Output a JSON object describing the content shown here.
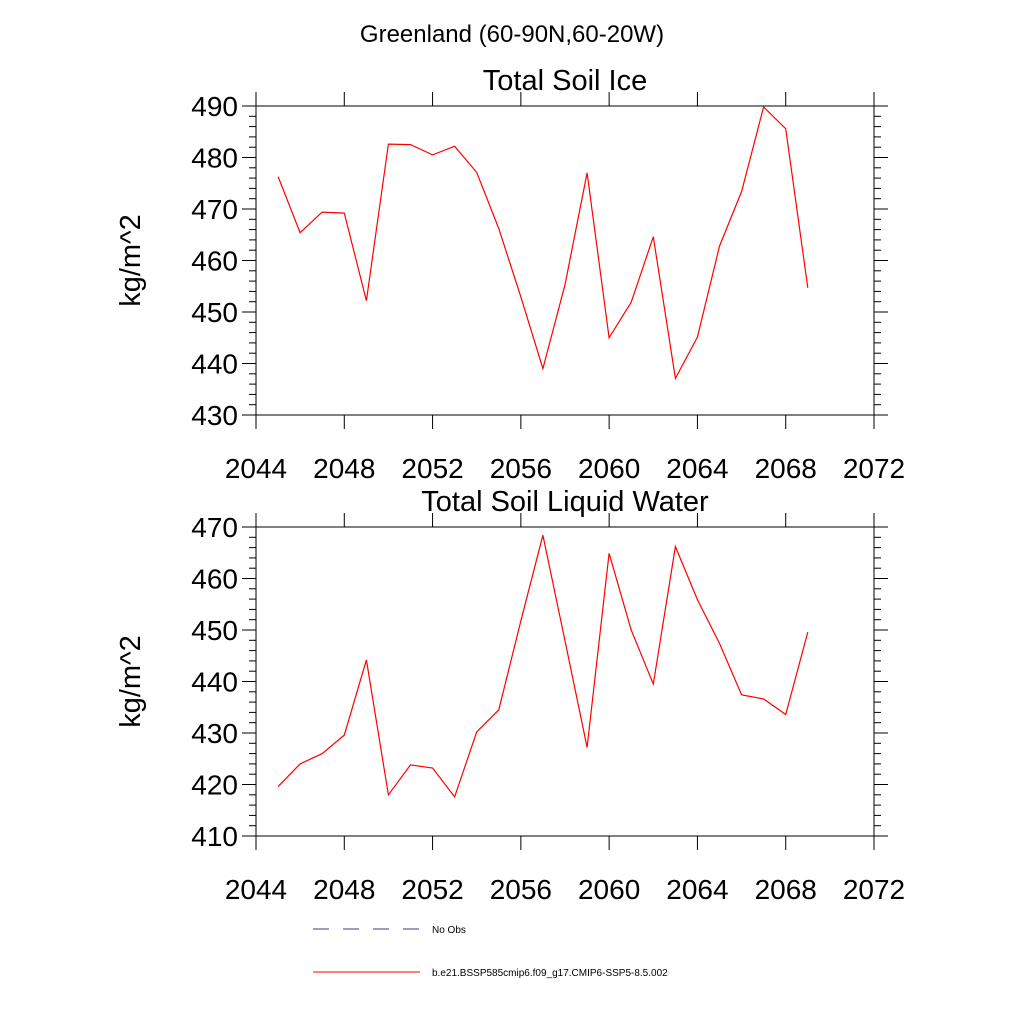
{
  "figure": {
    "title": "Greenland (60-90N,60-20W)"
  },
  "chart_data": [
    {
      "type": "line",
      "title": "Total Soil Ice",
      "xlabel": "",
      "ylabel": "kg/m^2",
      "xlim": [
        2044,
        2072
      ],
      "ylim": [
        430,
        490
      ],
      "xticks": [
        2044,
        2048,
        2052,
        2056,
        2060,
        2064,
        2068,
        2072
      ],
      "yticks": [
        430,
        440,
        450,
        460,
        470,
        480,
        490
      ],
      "x": [
        2045,
        2046,
        2047,
        2048,
        2049,
        2050,
        2051,
        2052,
        2053,
        2054,
        2055,
        2056,
        2057,
        2058,
        2059,
        2060,
        2061,
        2062,
        2063,
        2064,
        2065,
        2066,
        2067,
        2068,
        2069
      ],
      "series": [
        {
          "name": "b.e21.BSSP585cmip6.f09_g17.CMIP6-SSP5-8.5.002",
          "color": "#ff0000",
          "values": [
            476.3,
            465.4,
            469.4,
            469.2,
            452.2,
            482.6,
            482.5,
            480.5,
            482.2,
            477.1,
            466.2,
            452.9,
            439.0,
            455.3,
            477.0,
            445.0,
            451.9,
            464.6,
            437.1,
            445.1,
            462.8,
            473.4,
            489.8,
            485.6,
            454.7
          ]
        }
      ],
      "grid": false
    },
    {
      "type": "line",
      "title": "Total Soil Liquid Water",
      "xlabel": "",
      "ylabel": "kg/m^2",
      "xlim": [
        2044,
        2072
      ],
      "ylim": [
        410,
        470
      ],
      "xticks": [
        2044,
        2048,
        2052,
        2056,
        2060,
        2064,
        2068,
        2072
      ],
      "yticks": [
        410,
        420,
        430,
        440,
        450,
        460,
        470
      ],
      "x": [
        2045,
        2046,
        2047,
        2048,
        2049,
        2050,
        2051,
        2052,
        2053,
        2054,
        2055,
        2056,
        2057,
        2058,
        2059,
        2060,
        2061,
        2062,
        2063,
        2064,
        2065,
        2066,
        2067,
        2068,
        2069
      ],
      "series": [
        {
          "name": "b.e21.BSSP585cmip6.f09_g17.CMIP6-SSP5-8.5.002",
          "color": "#ff0000",
          "values": [
            419.6,
            424.0,
            426.0,
            429.6,
            444.2,
            418.0,
            423.8,
            423.2,
            417.6,
            430.2,
            434.5,
            451.8,
            468.4,
            447.9,
            427.2,
            464.9,
            450.0,
            439.5,
            466.2,
            455.9,
            447.4,
            437.4,
            436.6,
            433.6,
            449.6
          ]
        }
      ],
      "grid": false
    }
  ],
  "legend": {
    "placement": "bottom",
    "items": [
      {
        "label": "No Obs",
        "color": "#3a3a8c",
        "style": "dashed"
      },
      {
        "label": "b.e21.BSSP585cmip6.f09_g17.CMIP6-SSP5-8.5.002",
        "color": "#ff0000",
        "style": "solid"
      }
    ]
  }
}
